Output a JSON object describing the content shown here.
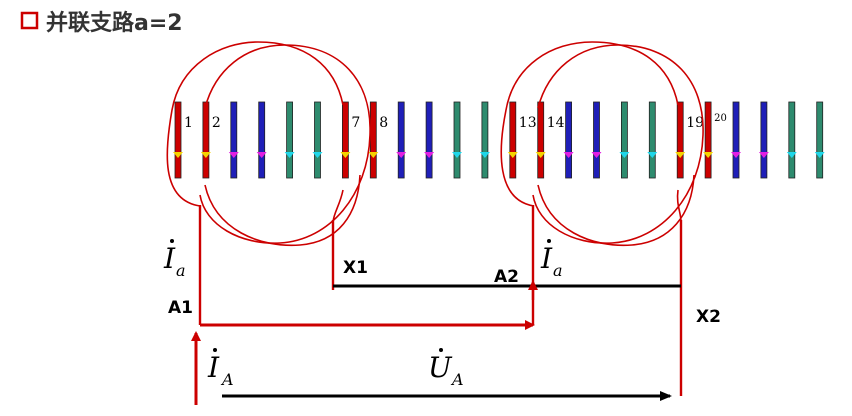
{
  "title": "并联支路a=2",
  "colors": {
    "phase_a": "#cc0000",
    "slot_blue": "#1f1fb8",
    "slot_green": "#2e8b6e",
    "title_box": "#cc0000",
    "dot_yellow": "#f5d200",
    "dot_magenta": "#e21fe2",
    "dot_cyan": "#1fd6e8",
    "wire": "#000000"
  },
  "slots": [
    {
      "number": "1",
      "color": "red"
    },
    {
      "number": "2",
      "color": "red"
    },
    {
      "number": "",
      "color": "blue"
    },
    {
      "number": "",
      "color": "blue"
    },
    {
      "number": "",
      "color": "green"
    },
    {
      "number": "",
      "color": "green"
    },
    {
      "number": "7",
      "color": "red"
    },
    {
      "number": "8",
      "color": "red"
    },
    {
      "number": "",
      "color": "blue"
    },
    {
      "number": "",
      "color": "blue"
    },
    {
      "number": "",
      "color": "green"
    },
    {
      "number": "",
      "color": "green"
    },
    {
      "number": "13",
      "color": "red"
    },
    {
      "number": "14",
      "color": "red"
    },
    {
      "number": "",
      "color": "blue"
    },
    {
      "number": "",
      "color": "blue"
    },
    {
      "number": "",
      "color": "green"
    },
    {
      "number": "",
      "color": "green"
    },
    {
      "number": "19",
      "color": "red"
    },
    {
      "number": "20",
      "color": "red"
    },
    {
      "number": "",
      "color": "blue"
    },
    {
      "number": "",
      "color": "blue"
    },
    {
      "number": "",
      "color": "green"
    },
    {
      "number": "",
      "color": "green"
    }
  ],
  "terminals": {
    "a1": "A1",
    "x1": "X1",
    "a2": "A2",
    "x2": "X2"
  },
  "symbols": {
    "branch_current": {
      "base": "I",
      "sub": "a"
    },
    "phase_current": {
      "base": "I",
      "sub": "A"
    },
    "phase_voltage": {
      "base": "U",
      "sub": "A"
    }
  }
}
